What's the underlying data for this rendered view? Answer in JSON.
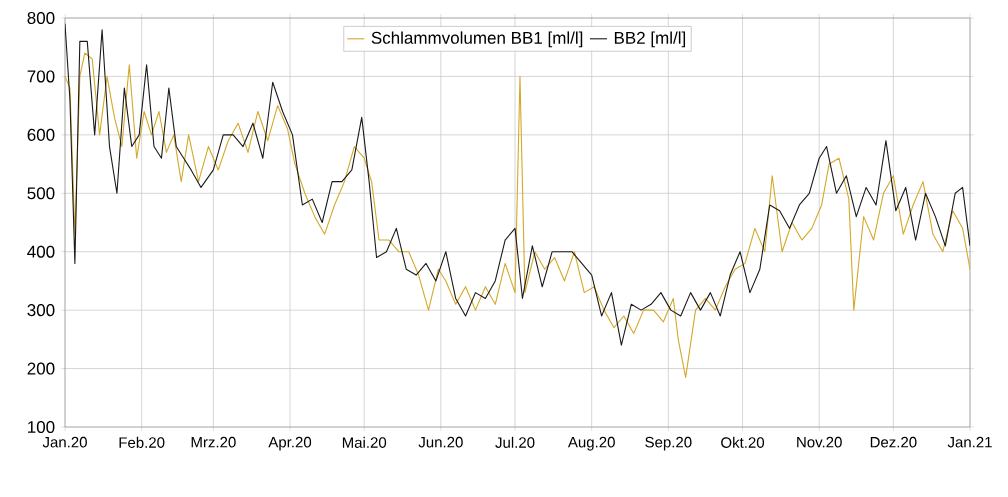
{
  "chart_data": {
    "type": "line",
    "legend": "top",
    "grid": true,
    "line_style": "solid",
    "marker": "none",
    "ylim": [
      100,
      800
    ],
    "yticks": [
      100,
      200,
      300,
      400,
      500,
      600,
      700,
      800
    ],
    "xlim": [
      "2020-01-01",
      "2021-01-01"
    ],
    "xticks": [
      {
        "value": "2020-01-01",
        "label": "Jan.20"
      },
      {
        "value": "2020-02-01",
        "label": "Feb.20"
      },
      {
        "value": "2020-03-01",
        "label": "Mrz.20"
      },
      {
        "value": "2020-04-01",
        "label": "Apr.20"
      },
      {
        "value": "2020-05-01",
        "label": "Mai.20"
      },
      {
        "value": "2020-06-01",
        "label": "Jun.20"
      },
      {
        "value": "2020-07-01",
        "label": "Jul.20"
      },
      {
        "value": "2020-08-01",
        "label": "Aug.20"
      },
      {
        "value": "2020-09-01",
        "label": "Sep.20"
      },
      {
        "value": "2020-10-01",
        "label": "Okt.20"
      },
      {
        "value": "2020-11-01",
        "label": "Nov.20"
      },
      {
        "value": "2020-12-01",
        "label": "Dez.20"
      },
      {
        "value": "2021-01-01",
        "label": "Jan.21"
      }
    ],
    "series": [
      {
        "name": "Schlammvolumen BB1 [ml/l]",
        "color": "#d4a82a",
        "x": [
          "2020-01-01",
          "2020-01-03",
          "2020-01-05",
          "2020-01-07",
          "2020-01-09",
          "2020-01-12",
          "2020-01-15",
          "2020-01-18",
          "2020-01-21",
          "2020-01-24",
          "2020-01-27",
          "2020-01-30",
          "2020-02-02",
          "2020-02-05",
          "2020-02-08",
          "2020-02-11",
          "2020-02-14",
          "2020-02-17",
          "2020-02-20",
          "2020-02-24",
          "2020-02-28",
          "2020-03-03",
          "2020-03-07",
          "2020-03-11",
          "2020-03-15",
          "2020-03-19",
          "2020-03-23",
          "2020-03-27",
          "2020-03-31",
          "2020-04-03",
          "2020-04-07",
          "2020-04-11",
          "2020-04-15",
          "2020-04-19",
          "2020-04-23",
          "2020-04-27",
          "2020-05-01",
          "2020-05-04",
          "2020-05-07",
          "2020-05-11",
          "2020-05-15",
          "2020-05-19",
          "2020-05-23",
          "2020-05-27",
          "2020-05-31",
          "2020-06-03",
          "2020-06-07",
          "2020-06-11",
          "2020-06-15",
          "2020-06-19",
          "2020-06-23",
          "2020-06-27",
          "2020-07-01",
          "2020-07-03",
          "2020-07-05",
          "2020-07-09",
          "2020-07-13",
          "2020-07-17",
          "2020-07-21",
          "2020-07-25",
          "2020-07-29",
          "2020-08-02",
          "2020-08-06",
          "2020-08-10",
          "2020-08-14",
          "2020-08-18",
          "2020-08-22",
          "2020-08-26",
          "2020-08-30",
          "2020-09-03",
          "2020-09-05",
          "2020-09-08",
          "2020-09-12",
          "2020-09-16",
          "2020-09-20",
          "2020-09-24",
          "2020-09-28",
          "2020-10-02",
          "2020-10-06",
          "2020-10-10",
          "2020-10-13",
          "2020-10-17",
          "2020-10-21",
          "2020-10-25",
          "2020-10-29",
          "2020-11-02",
          "2020-11-05",
          "2020-11-09",
          "2020-11-13",
          "2020-11-15",
          "2020-11-19",
          "2020-11-23",
          "2020-11-27",
          "2020-12-01",
          "2020-12-05",
          "2020-12-09",
          "2020-12-13",
          "2020-12-17",
          "2020-12-21",
          "2020-12-25",
          "2020-12-29",
          "2021-01-01"
        ],
        "values": [
          700,
          680,
          430,
          700,
          740,
          730,
          600,
          700,
          630,
          580,
          720,
          560,
          640,
          600,
          640,
          570,
          600,
          520,
          600,
          520,
          580,
          540,
          590,
          620,
          570,
          640,
          590,
          650,
          610,
          550,
          500,
          460,
          430,
          480,
          520,
          580,
          560,
          520,
          420,
          420,
          400,
          400,
          360,
          300,
          370,
          350,
          310,
          340,
          300,
          340,
          310,
          380,
          330,
          700,
          330,
          400,
          370,
          390,
          350,
          400,
          330,
          340,
          300,
          270,
          290,
          260,
          300,
          300,
          280,
          320,
          250,
          185,
          300,
          320,
          300,
          340,
          370,
          380,
          440,
          400,
          530,
          400,
          450,
          420,
          440,
          480,
          550,
          560,
          490,
          300,
          460,
          420,
          500,
          530,
          430,
          480,
          520,
          430,
          400,
          470,
          440,
          370
        ]
      },
      {
        "name": "BB2 [ml/l]",
        "color": "#1a1a1a",
        "x": [
          "2020-01-01",
          "2020-01-03",
          "2020-01-05",
          "2020-01-07",
          "2020-01-10",
          "2020-01-13",
          "2020-01-16",
          "2020-01-19",
          "2020-01-22",
          "2020-01-25",
          "2020-01-28",
          "2020-01-31",
          "2020-02-03",
          "2020-02-06",
          "2020-02-09",
          "2020-02-12",
          "2020-02-15",
          "2020-02-18",
          "2020-02-21",
          "2020-02-25",
          "2020-03-01",
          "2020-03-05",
          "2020-03-09",
          "2020-03-13",
          "2020-03-17",
          "2020-03-21",
          "2020-03-25",
          "2020-03-29",
          "2020-04-02",
          "2020-04-06",
          "2020-04-10",
          "2020-04-14",
          "2020-04-18",
          "2020-04-22",
          "2020-04-26",
          "2020-04-30",
          "2020-05-03",
          "2020-05-06",
          "2020-05-10",
          "2020-05-14",
          "2020-05-18",
          "2020-05-22",
          "2020-05-26",
          "2020-05-30",
          "2020-06-03",
          "2020-06-07",
          "2020-06-11",
          "2020-06-15",
          "2020-06-19",
          "2020-06-23",
          "2020-06-27",
          "2020-07-01",
          "2020-07-04",
          "2020-07-08",
          "2020-07-12",
          "2020-07-16",
          "2020-07-20",
          "2020-07-24",
          "2020-07-28",
          "2020-08-01",
          "2020-08-05",
          "2020-08-09",
          "2020-08-13",
          "2020-08-17",
          "2020-08-21",
          "2020-08-25",
          "2020-08-29",
          "2020-09-02",
          "2020-09-06",
          "2020-09-10",
          "2020-09-14",
          "2020-09-18",
          "2020-09-22",
          "2020-09-26",
          "2020-09-30",
          "2020-10-04",
          "2020-10-08",
          "2020-10-12",
          "2020-10-16",
          "2020-10-20",
          "2020-10-24",
          "2020-10-28",
          "2020-11-01",
          "2020-11-04",
          "2020-11-08",
          "2020-11-12",
          "2020-11-16",
          "2020-11-20",
          "2020-11-24",
          "2020-11-28",
          "2020-12-02",
          "2020-12-06",
          "2020-12-10",
          "2020-12-14",
          "2020-12-18",
          "2020-12-22",
          "2020-12-26",
          "2020-12-29",
          "2021-01-01"
        ],
        "values": [
          790,
          660,
          380,
          760,
          760,
          600,
          780,
          580,
          500,
          680,
          580,
          600,
          720,
          580,
          560,
          680,
          580,
          560,
          540,
          510,
          540,
          600,
          600,
          580,
          620,
          560,
          690,
          640,
          600,
          480,
          490,
          450,
          520,
          520,
          540,
          630,
          520,
          390,
          400,
          440,
          370,
          360,
          380,
          350,
          400,
          320,
          290,
          330,
          320,
          350,
          420,
          440,
          320,
          410,
          340,
          400,
          400,
          400,
          380,
          360,
          290,
          330,
          240,
          310,
          300,
          310,
          330,
          300,
          290,
          330,
          300,
          330,
          290,
          360,
          400,
          330,
          370,
          480,
          470,
          440,
          480,
          500,
          560,
          580,
          500,
          530,
          460,
          510,
          480,
          590,
          470,
          510,
          420,
          500,
          460,
          410,
          500,
          510,
          410
        ]
      }
    ]
  }
}
